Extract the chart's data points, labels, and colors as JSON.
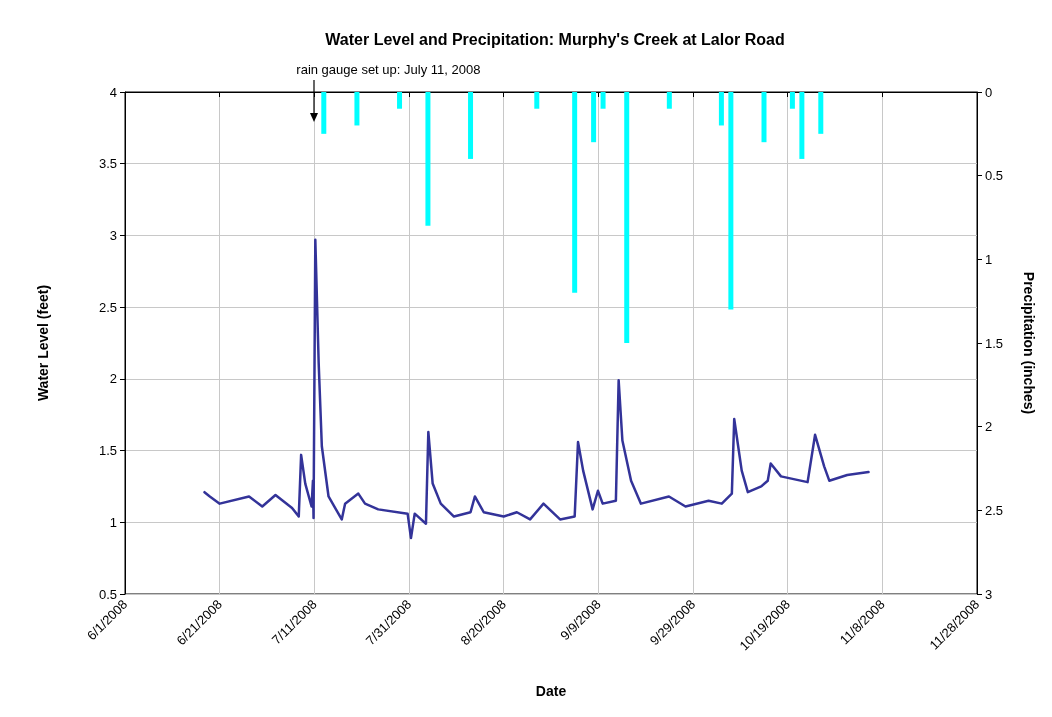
{
  "chart_data": {
    "type": "line",
    "title": "Water Level and Precipitation: Murphy's Creek at Lalor Road",
    "xlabel": "Date",
    "ylabel": "Water Level (feet)",
    "y2label": "Precipitation (inches)",
    "ref_lines": [
      {
        "axis": "x",
        "value": "2008-07-11",
        "label": "rain gauge set up: July 11, 2008",
        "color": "#000000"
      }
    ],
    "series": [
      {
        "color": "#333399",
        "x": [
          "2008-06-17T19:00",
          "2008-06-18T22:00",
          "2008-06-21T00:00",
          "2008-06-27T05:00",
          "2008-06-30T00:00",
          "2008-07-02T19:00",
          "2008-07-06T07:00",
          "2008-07-07T17:00",
          "2008-07-08T05:00",
          "2008-07-09T02:00",
          "2008-07-10T10:00",
          "2008-07-10T17:00",
          "2008-07-10T20:00",
          "2008-07-11T05:00",
          "2008-07-11T22:00",
          "2008-07-12T14:00",
          "2008-07-14T00:00",
          "2008-07-16T19:00",
          "2008-07-17T12:00",
          "2008-07-20T07:00",
          "2008-07-21T17:00",
          "2008-07-24T12:00",
          "2008-07-30T17:00",
          "2008-07-31T10:00",
          "2008-08-01T05:00",
          "2008-08-03T14:00",
          "2008-08-04T02:00",
          "2008-08-05T00:00",
          "2008-08-06T17:00",
          "2008-08-09T12:00",
          "2008-08-13T00:00",
          "2008-08-13T22:00",
          "2008-08-15T19:00",
          "2008-08-20T00:00",
          "2008-08-22T19:00",
          "2008-08-25T14:00",
          "2008-08-28T10:00",
          "2008-08-31T22:00",
          "2008-09-04T00:00",
          "2008-09-04T17:00",
          "2008-09-05T19:00",
          "2008-09-07T19:00",
          "2008-09-08T22:00",
          "2008-09-09T22:00",
          "2008-09-12T17:00",
          "2008-09-13T07:00",
          "2008-09-14T02:00",
          "2008-09-15T22:00",
          "2008-09-18T00:00",
          "2008-09-23T22:00",
          "2008-09-27T10:00",
          "2008-10-02T07:00",
          "2008-10-05T02:00",
          "2008-10-07T05:00",
          "2008-10-07T17:00",
          "2008-10-09T07:00",
          "2008-10-10T14:00",
          "2008-10-13T10:00",
          "2008-10-14T19:00",
          "2008-10-15T10:00",
          "2008-10-17T14:00",
          "2008-10-23T05:00",
          "2008-10-24T19:00",
          "2008-10-26T17:00",
          "2008-10-27T19:00",
          "2008-10-31T14:00",
          "2008-11-05T02:00"
        ],
        "values": [
          1.21,
          1.18,
          1.13,
          1.18,
          1.11,
          1.19,
          1.1,
          1.04,
          1.47,
          1.27,
          1.11,
          1.29,
          1.03,
          2.97,
          2.11,
          1.53,
          1.18,
          1.02,
          1.13,
          1.2,
          1.13,
          1.09,
          1.06,
          0.89,
          1.06,
          0.99,
          1.63,
          1.27,
          1.13,
          1.04,
          1.07,
          1.18,
          1.07,
          1.04,
          1.07,
          1.02,
          1.13,
          1.02,
          1.04,
          1.56,
          1.36,
          1.09,
          1.22,
          1.13,
          1.15,
          1.99,
          1.57,
          1.29,
          1.13,
          1.18,
          1.11,
          1.15,
          1.13,
          1.2,
          1.72,
          1.36,
          1.21,
          1.25,
          1.29,
          1.41,
          1.32,
          1.28,
          1.61,
          1.39,
          1.29,
          1.33,
          1.35
        ]
      },
      {
        "type": "bar",
        "axis": "y2",
        "color": "#00ffff",
        "x": [
          "2008-07-13",
          "2008-07-20",
          "2008-07-29",
          "2008-08-04",
          "2008-08-13",
          "2008-08-27",
          "2008-09-04",
          "2008-09-08",
          "2008-09-10",
          "2008-09-15",
          "2008-09-24",
          "2008-10-05",
          "2008-10-07",
          "2008-10-14",
          "2008-10-20",
          "2008-10-22",
          "2008-10-26"
        ],
        "values": [
          0.25,
          0.2,
          0.1,
          0.8,
          0.4,
          0.1,
          1.2,
          0.3,
          0.1,
          1.5,
          0.1,
          0.2,
          1.3,
          0.3,
          0.1,
          0.4,
          0.25
        ]
      }
    ],
    "xlim": [
      "2008-06-01",
      "2008-11-28"
    ],
    "xticks": [
      {
        "value": "2008-06-01",
        "label": "6/1/2008"
      },
      {
        "value": "2008-06-21",
        "label": "6/21/2008"
      },
      {
        "value": "2008-07-11",
        "label": "7/11/2008"
      },
      {
        "value": "2008-07-31",
        "label": "7/31/2008"
      },
      {
        "value": "2008-08-20",
        "label": "8/20/2008"
      },
      {
        "value": "2008-09-09",
        "label": "9/9/2008"
      },
      {
        "value": "2008-09-29",
        "label": "9/29/2008"
      },
      {
        "value": "2008-10-19",
        "label": "10/19/2008"
      },
      {
        "value": "2008-11-08",
        "label": "11/8/2008"
      },
      {
        "value": "2008-11-28",
        "label": "11/28/2008"
      }
    ],
    "ylim": [
      0.5,
      4
    ],
    "yticks": [
      0.5,
      1,
      1.5,
      2,
      2.5,
      3,
      3.5,
      4
    ],
    "y2lim": [
      3,
      0
    ],
    "y2ticks": [
      0,
      0.5,
      1,
      1.5,
      2,
      2.5,
      3
    ],
    "grid": true,
    "marker": "none",
    "line_style": "solid"
  }
}
